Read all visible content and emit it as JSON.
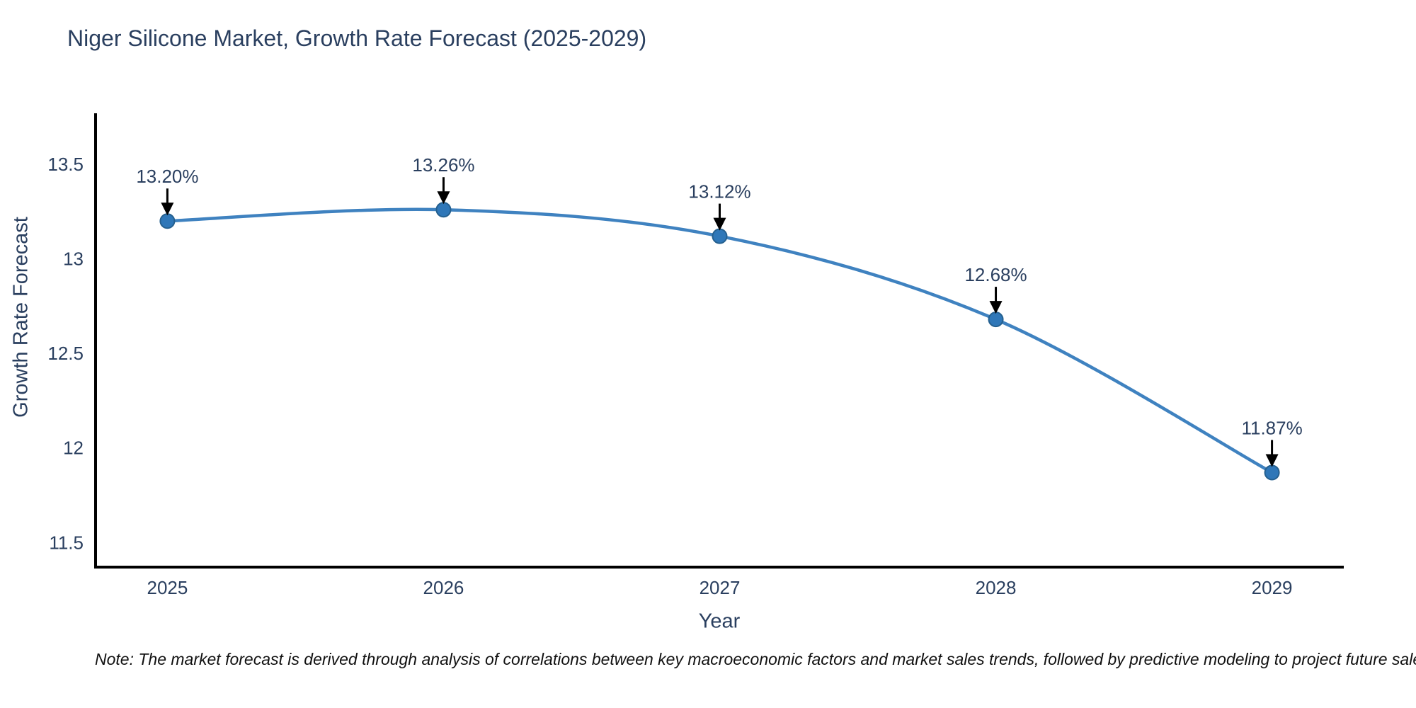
{
  "note": "Note: The market forecast is derived through analysis of correlations between key macroeconomic factors and market sales trends, followed by predictive modeling to project future sales.",
  "chart_data": {
    "type": "line",
    "title": "Niger Silicone Market, Growth Rate Forecast (2025-2029)",
    "xlabel": "Year",
    "ylabel": "Growth Rate Forecast",
    "categories": [
      "2025",
      "2026",
      "2027",
      "2028",
      "2029"
    ],
    "values": [
      13.2,
      13.26,
      13.12,
      12.68,
      11.87
    ],
    "point_labels": [
      "13.20%",
      "13.26%",
      "13.12%",
      "12.68%",
      "11.87%"
    ],
    "yticks": [
      "13.5",
      "13",
      "12.5",
      "12",
      "11.5"
    ],
    "ytick_values": [
      13.5,
      13.0,
      12.5,
      12.0,
      11.5
    ],
    "ylim": [
      11.37,
      13.77
    ],
    "xlim": [
      2024.74,
      2029.26
    ],
    "x_values": [
      2025,
      2026,
      2027,
      2028,
      2029
    ],
    "grid": false,
    "legend_position": "none",
    "line_shape": "spline",
    "line_color": "#3f82c0",
    "marker_color": "#2f77b8",
    "marker_edge_color": "#25608f",
    "annotation_arrow_color": "#000000",
    "text_color": "#2a3f5f",
    "axis_line_color": "#000000"
  }
}
